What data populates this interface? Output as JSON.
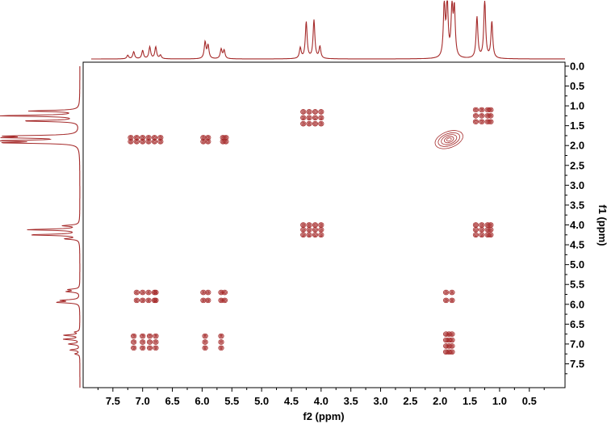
{
  "chart_data": {
    "type": "2d-nmr-cosy-contour",
    "xlabel": "f2 (ppm)",
    "ylabel": "f1 (ppm)",
    "xlim": [
      8.0,
      -0.1
    ],
    "ylim": [
      -0.1,
      8.1
    ],
    "x_ticks": [
      "7.5",
      "7.0",
      "6.5",
      "6.0",
      "5.5",
      "5.0",
      "4.5",
      "4.0",
      "3.5",
      "3.0",
      "2.5",
      "2.0",
      "1.5",
      "1.0",
      "0.5"
    ],
    "y_ticks": [
      "0.0",
      "0.5",
      "1.0",
      "1.5",
      "2.0",
      "2.5",
      "3.0",
      "3.5",
      "4.0",
      "4.5",
      "5.0",
      "5.5",
      "6.0",
      "6.5",
      "7.0",
      "7.5"
    ],
    "contour_color": "#a52a2a",
    "projection_peaks": [
      {
        "shift": 7.25,
        "intensity": 0.06
      },
      {
        "shift": 7.15,
        "intensity": 0.12
      },
      {
        "shift": 7.0,
        "intensity": 0.14
      },
      {
        "shift": 6.88,
        "intensity": 0.2
      },
      {
        "shift": 6.78,
        "intensity": 0.2
      },
      {
        "shift": 6.7,
        "intensity": 0.06
      },
      {
        "shift": 5.95,
        "intensity": 0.28
      },
      {
        "shift": 5.9,
        "intensity": 0.22
      },
      {
        "shift": 5.68,
        "intensity": 0.16
      },
      {
        "shift": 5.63,
        "intensity": 0.14
      },
      {
        "shift": 4.35,
        "intensity": 0.18
      },
      {
        "shift": 4.25,
        "intensity": 0.62
      },
      {
        "shift": 4.12,
        "intensity": 0.65
      },
      {
        "shift": 4.02,
        "intensity": 0.2
      },
      {
        "shift": 1.93,
        "intensity": 0.9
      },
      {
        "shift": 1.88,
        "intensity": 0.92
      },
      {
        "shift": 1.8,
        "intensity": 0.82
      },
      {
        "shift": 1.76,
        "intensity": 0.8
      },
      {
        "shift": 1.38,
        "intensity": 0.7
      },
      {
        "shift": 1.25,
        "intensity": 1.0
      },
      {
        "shift": 1.13,
        "intensity": 0.62
      }
    ],
    "cross_peaks": [
      {
        "f2": 4.3,
        "f1": 1.15,
        "cols": [
          4.3,
          4.2,
          4.1,
          4.0
        ],
        "rows": [
          1.15,
          1.3,
          1.45
        ]
      },
      {
        "f2": 1.25,
        "f1": 1.25,
        "cols": [
          1.4,
          1.3,
          1.2,
          1.15
        ],
        "rows": [
          1.1,
          1.25,
          1.4
        ]
      },
      {
        "f2": 7.0,
        "f1": 1.85,
        "cols": [
          7.2,
          7.1,
          7.0,
          6.9,
          6.8,
          6.7
        ],
        "rows": [
          1.8,
          1.9
        ]
      },
      {
        "f2": 5.95,
        "f1": 1.85,
        "cols": [
          5.98,
          5.9
        ],
        "rows": [
          1.8,
          1.9
        ]
      },
      {
        "f2": 5.63,
        "f1": 1.9,
        "cols": [
          5.65,
          5.6
        ],
        "rows": [
          1.8,
          1.9
        ]
      },
      {
        "f2": 4.2,
        "f1": 4.1,
        "cols": [
          4.3,
          4.2,
          4.1,
          4.0
        ],
        "rows": [
          4.0,
          4.12,
          4.25
        ]
      },
      {
        "f2": 1.25,
        "f1": 4.1,
        "cols": [
          1.4,
          1.3,
          1.2,
          1.15
        ],
        "rows": [
          4.0,
          4.12,
          4.25
        ]
      },
      {
        "f2": 6.85,
        "f1": 5.85,
        "cols": [
          7.1,
          7.0,
          6.9,
          6.8,
          6.78
        ],
        "rows": [
          5.7,
          5.9
        ]
      },
      {
        "f2": 5.9,
        "f1": 5.8,
        "cols": [
          5.98,
          5.9,
          5.68,
          5.62
        ],
        "rows": [
          5.7,
          5.9
        ]
      },
      {
        "f2": 1.85,
        "f1": 5.85,
        "cols": [
          1.9,
          1.8
        ],
        "rows": [
          5.7,
          5.9
        ]
      },
      {
        "f2": 7.0,
        "f1": 6.9,
        "cols": [
          7.15,
          7.0,
          6.88,
          6.78
        ],
        "rows": [
          6.8,
          6.95,
          7.1
        ]
      },
      {
        "f2": 5.9,
        "f1": 6.9,
        "cols": [
          5.95,
          5.68
        ],
        "rows": [
          6.8,
          6.95,
          7.1
        ]
      },
      {
        "f2": 1.85,
        "f1": 6.9,
        "cols": [
          1.9,
          1.85,
          1.8
        ],
        "rows": [
          6.75,
          6.9,
          7.05,
          7.2
        ]
      }
    ],
    "diagonal_peak": {
      "f2": 1.85,
      "f1": 1.85
    }
  }
}
